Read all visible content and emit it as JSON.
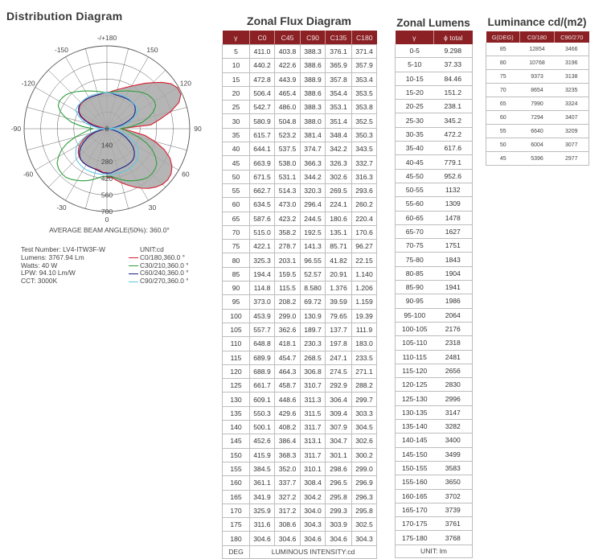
{
  "distribution": {
    "title": "Distribution Diagram",
    "beam_angle_text": "AVERAGE BEAM ANGLE(50%): 360.0°",
    "angle_labels": [
      "-/+180",
      "150",
      "120",
      "90",
      "60",
      "30",
      "0",
      "-30",
      "-60",
      "-90",
      "-120",
      "-150"
    ],
    "radius_labels": [
      "0",
      "140",
      "280",
      "420",
      "560",
      "700"
    ],
    "fill_color": "#a8a8a8",
    "colors": {
      "c0": "#d91c2f",
      "c30": "#2f9e3c",
      "c60": "#1b1f8a",
      "c90": "#5ec8e0"
    }
  },
  "info": {
    "test_number": "Test Number: LV4-ITW3F-W",
    "lumens": "Lumens: 3767.94 Lm",
    "watts": "Watts: 40 W",
    "lpw": "LPW: 94.10 Lm/W",
    "cct": "CCT: 3000K"
  },
  "legend": {
    "unit": "UNIT:cd",
    "items": [
      {
        "label": "C0/180,360.0 °",
        "color": "#d91c2f"
      },
      {
        "label": "C30/210,360.0 °",
        "color": "#2f9e3c"
      },
      {
        "label": "C60/240,360.0 °",
        "color": "#1b1f8a"
      },
      {
        "label": "C90/270,360.0 °",
        "color": "#5ec8e0"
      }
    ]
  },
  "zonal_flux": {
    "title": "Zonal Flux Diagram",
    "headers": [
      "γ",
      "C0",
      "C45",
      "C90",
      "C135",
      "C180"
    ],
    "rows": [
      [
        "5",
        "411.0",
        "403.8",
        "388.3",
        "376.1",
        "371.4"
      ],
      [
        "10",
        "440.2",
        "422.6",
        "388.6",
        "365.9",
        "357.9"
      ],
      [
        "15",
        "472.8",
        "443.9",
        "388.9",
        "357.8",
        "353.4"
      ],
      [
        "20",
        "506.4",
        "465.4",
        "388.6",
        "354.4",
        "353.5"
      ],
      [
        "25",
        "542.7",
        "486.0",
        "388.3",
        "353.1",
        "353.8"
      ],
      [
        "30",
        "580.9",
        "504.8",
        "388.0",
        "351.4",
        "352.5"
      ],
      [
        "35",
        "615.7",
        "523.2",
        "381.4",
        "348.4",
        "350.3"
      ],
      [
        "40",
        "644.1",
        "537.5",
        "374.7",
        "342.2",
        "343.5"
      ],
      [
        "45",
        "663.9",
        "538.0",
        "366.3",
        "326.3",
        "332.7"
      ],
      [
        "50",
        "671.5",
        "531.1",
        "344.2",
        "302.6",
        "316.3"
      ],
      [
        "55",
        "662.7",
        "514.3",
        "320.3",
        "269.5",
        "293.6"
      ],
      [
        "60",
        "634.5",
        "473.0",
        "296.4",
        "224.1",
        "260.2"
      ],
      [
        "65",
        "587.6",
        "423.2",
        "244.5",
        "180.6",
        "220.4"
      ],
      [
        "70",
        "515.0",
        "358.2",
        "192.5",
        "135.1",
        "170.6"
      ],
      [
        "75",
        "422.1",
        "278.7",
        "141.3",
        "85.71",
        "96.27"
      ],
      [
        "80",
        "325.3",
        "203.1",
        "96.55",
        "41.82",
        "22.15"
      ],
      [
        "85",
        "194.4",
        "159.5",
        "52.57",
        "20.91",
        "1.140"
      ],
      [
        "90",
        "114.8",
        "115.5",
        "8.580",
        "1.376",
        "1.206"
      ],
      [
        "95",
        "373.0",
        "208.2",
        "69.72",
        "39.59",
        "1.159"
      ],
      [
        "100",
        "453.9",
        "299.0",
        "130.9",
        "79.65",
        "19.39"
      ],
      [
        "105",
        "557.7",
        "362.6",
        "189.7",
        "137.7",
        "111.9"
      ],
      [
        "110",
        "648.8",
        "418.1",
        "230.3",
        "197.8",
        "183.0"
      ],
      [
        "115",
        "689.9",
        "454.7",
        "268.5",
        "247.1",
        "233.5"
      ],
      [
        "120",
        "688.9",
        "464.3",
        "306.8",
        "274.5",
        "271.1"
      ],
      [
        "125",
        "661.7",
        "458.7",
        "310.7",
        "292.9",
        "288.2"
      ],
      [
        "130",
        "609.1",
        "448.6",
        "311.3",
        "306.4",
        "299.7"
      ],
      [
        "135",
        "550.3",
        "429.6",
        "311.5",
        "309.4",
        "303.3"
      ],
      [
        "140",
        "500.1",
        "408.2",
        "311.7",
        "307.9",
        "304.5"
      ],
      [
        "145",
        "452.6",
        "386.4",
        "313.1",
        "304.7",
        "302.6"
      ],
      [
        "150",
        "415.9",
        "368.3",
        "311.7",
        "301.1",
        "300.2"
      ],
      [
        "155",
        "384.5",
        "352.0",
        "310.1",
        "298.6",
        "299.0"
      ],
      [
        "160",
        "361.1",
        "337.7",
        "308.4",
        "296.5",
        "296.9"
      ],
      [
        "165",
        "341.9",
        "327.2",
        "304.2",
        "295.8",
        "296.3"
      ],
      [
        "170",
        "325.9",
        "317.2",
        "304.0",
        "299.3",
        "295.8"
      ],
      [
        "175",
        "311.6",
        "308.6",
        "304.3",
        "303.9",
        "302.5"
      ],
      [
        "180",
        "304.6",
        "304.6",
        "304.6",
        "304.6",
        "304.3"
      ]
    ],
    "footer_left": "DEG",
    "footer_right": "LUMINOUS INTENSITY:cd"
  },
  "zonal_lumens": {
    "title": "Zonal Lumens",
    "headers": [
      "γ",
      "ϕ total"
    ],
    "rows": [
      [
        "0-5",
        "9.298"
      ],
      [
        "5-10",
        "37.33"
      ],
      [
        "10-15",
        "84.46"
      ],
      [
        "15-20",
        "151.2"
      ],
      [
        "20-25",
        "238.1"
      ],
      [
        "25-30",
        "345.2"
      ],
      [
        "30-35",
        "472.2"
      ],
      [
        "35-40",
        "617.6"
      ],
      [
        "40-45",
        "779.1"
      ],
      [
        "45-50",
        "952.6"
      ],
      [
        "50-55",
        "1132"
      ],
      [
        "55-60",
        "1309"
      ],
      [
        "60-65",
        "1478"
      ],
      [
        "65-70",
        "1627"
      ],
      [
        "70-75",
        "1751"
      ],
      [
        "75-80",
        "1843"
      ],
      [
        "80-85",
        "1904"
      ],
      [
        "85-90",
        "1941"
      ],
      [
        "90-95",
        "1986"
      ],
      [
        "95-100",
        "2064"
      ],
      [
        "100-105",
        "2176"
      ],
      [
        "105-110",
        "2318"
      ],
      [
        "110-115",
        "2481"
      ],
      [
        "115-120",
        "2656"
      ],
      [
        "120-125",
        "2830"
      ],
      [
        "125-130",
        "2996"
      ],
      [
        "130-135",
        "3147"
      ],
      [
        "135-140",
        "3282"
      ],
      [
        "140-145",
        "3400"
      ],
      [
        "145-150",
        "3499"
      ],
      [
        "150-155",
        "3583"
      ],
      [
        "155-160",
        "3650"
      ],
      [
        "160-165",
        "3702"
      ],
      [
        "165-170",
        "3739"
      ],
      [
        "170-175",
        "3761"
      ],
      [
        "175-180",
        "3768"
      ]
    ],
    "footer": "UNIT: lm"
  },
  "luminance": {
    "title": "Luminance cd/(m2)",
    "headers": [
      "G(DEG)",
      "C0/180",
      "C90/270"
    ],
    "rows": [
      [
        "85",
        "12854",
        "3466"
      ],
      [
        "80",
        "10768",
        "3196"
      ],
      [
        "75",
        "9373",
        "3138"
      ],
      [
        "70",
        "8654",
        "3235"
      ],
      [
        "65",
        "7990",
        "3324"
      ],
      [
        "60",
        "7294",
        "3407"
      ],
      [
        "55",
        "6640",
        "3209"
      ],
      [
        "50",
        "6004",
        "3077"
      ],
      [
        "45",
        "5396",
        "2977"
      ]
    ]
  },
  "theme": {
    "header_bg": "#8b2124",
    "grid_line": "#bdbdbd"
  }
}
